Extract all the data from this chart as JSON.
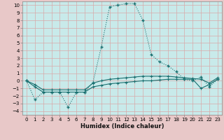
{
  "xlabel": "Humidex (Indice chaleur)",
  "background_color": "#c8eaea",
  "outer_color": "#e8c8c8",
  "grid_color": "#d8a8a8",
  "line_color": "#1a7070",
  "xlim": [
    -0.5,
    23.5
  ],
  "ylim": [
    -4.5,
    10.5
  ],
  "xticks": [
    0,
    1,
    2,
    3,
    4,
    5,
    6,
    7,
    8,
    9,
    10,
    11,
    12,
    13,
    14,
    15,
    16,
    17,
    18,
    19,
    20,
    21,
    22,
    23
  ],
  "yticks": [
    -4,
    -3,
    -2,
    -1,
    0,
    1,
    2,
    3,
    4,
    5,
    6,
    7,
    8,
    9,
    10
  ],
  "line1": {
    "x": [
      0,
      1,
      2,
      3,
      4,
      5,
      6,
      7,
      8,
      9,
      10,
      11,
      12,
      13,
      14,
      15,
      16,
      17,
      18,
      19,
      20,
      21,
      22,
      23
    ],
    "y": [
      0,
      -2.5,
      -1.5,
      -1.5,
      -1.5,
      -3.5,
      -1.5,
      -1.5,
      -0.2,
      4.5,
      9.8,
      10,
      10.2,
      10.2,
      8,
      3.5,
      2.5,
      2,
      1.2,
      0.2,
      0,
      0.5,
      -0.8,
      0.2
    ]
  },
  "line2": {
    "x": [
      0,
      1,
      2,
      3,
      4,
      5,
      6,
      7,
      8,
      9,
      10,
      11,
      12,
      13,
      14,
      15,
      16,
      17,
      18,
      19,
      20,
      21,
      22,
      23
    ],
    "y": [
      0,
      -0.8,
      -1.5,
      -1.5,
      -1.5,
      -1.5,
      -1.5,
      -1.5,
      -0.8,
      -0.6,
      -0.4,
      -0.3,
      -0.2,
      -0.1,
      0,
      0,
      0.1,
      0.2,
      0.2,
      0.2,
      0.2,
      -1.0,
      -0.5,
      0.2
    ]
  },
  "line3": {
    "x": [
      0,
      1,
      2,
      3,
      4,
      5,
      6,
      7,
      8,
      9,
      10,
      11,
      12,
      13,
      14,
      15,
      16,
      17,
      18,
      19,
      20,
      21,
      22,
      23
    ],
    "y": [
      0,
      -0.5,
      -1.2,
      -1.2,
      -1.2,
      -1.2,
      -1.2,
      -1.2,
      -0.3,
      0,
      0.2,
      0.3,
      0.4,
      0.5,
      0.6,
      0.6,
      0.6,
      0.6,
      0.5,
      0.4,
      0.3,
      0.2,
      -0.3,
      0.4
    ]
  },
  "xlabel_fontsize": 6,
  "tick_fontsize": 5
}
